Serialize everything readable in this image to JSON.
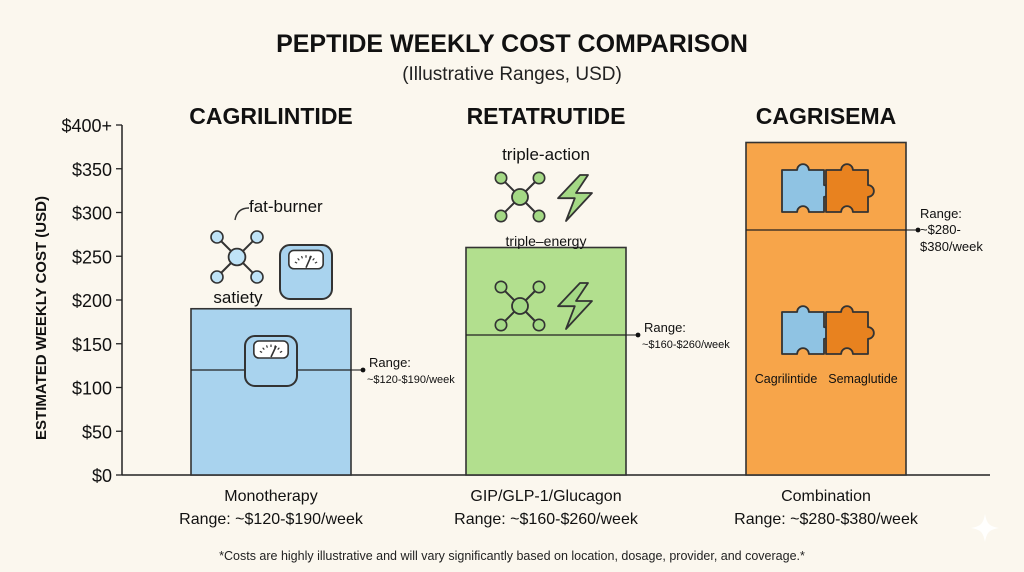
{
  "chart_data": {
    "type": "bar",
    "title": "PEPTIDE WEEKLY COST COMPARISON",
    "subtitle": "(Illustrative Ranges, USD)",
    "ylabel": "ESTIMATED WEEKLY COST (USD)",
    "ylim": [
      0,
      400
    ],
    "yticks": [
      {
        "value": 0,
        "label": "$0"
      },
      {
        "value": 50,
        "label": "$50"
      },
      {
        "value": 100,
        "label": "$100"
      },
      {
        "value": 150,
        "label": "$150"
      },
      {
        "value": 200,
        "label": "$200"
      },
      {
        "value": 250,
        "label": "$250"
      },
      {
        "value": 300,
        "label": "$300"
      },
      {
        "value": 350,
        "label": "$350"
      },
      {
        "value": 400,
        "label": "$400+"
      }
    ],
    "grid": false,
    "bars": [
      {
        "name": "CAGRILINTIDE",
        "low": 120,
        "high": 190,
        "color": "#a9d3ee",
        "range_label_top": "Range:",
        "range_label_bottom": "~$120-$190/week",
        "caption_line1": "Monotherapy",
        "caption_line2": "Range: ~$120-$190/week",
        "icon_labels": [
          "fat-burner",
          "satiety"
        ]
      },
      {
        "name": "RETATRUTIDE",
        "low": 160,
        "high": 260,
        "color": "#b2df8e",
        "range_label_top": "Range:",
        "range_label_bottom": "~$160-$260/week",
        "caption_line1": "GIP/GLP-1/Glucagon",
        "caption_line2": "Range: ~$160-$260/week",
        "icon_labels": [
          "triple-action",
          "triple–energy"
        ]
      },
      {
        "name": "CAGRISEMA",
        "low": 280,
        "high": 380,
        "color": "#f7a54a",
        "range_label_top": "Range:",
        "range_label_bottom": "~$280-\n$380/week",
        "caption_line1": "Combination",
        "caption_line2": "Range: ~$280-$380/week",
        "icon_labels": [
          "Cagrilintide",
          "Semaglutide"
        ]
      }
    ]
  },
  "footnote": "*Costs are highly illustrative and will vary significantly based on location, dosage, provider, and coverage.*",
  "icons": {
    "molecule": "molecule-icon",
    "lightning": "lightning-icon",
    "scale": "scale-icon",
    "puzzle": "puzzle-icon",
    "sparkle": "sparkle-icon"
  },
  "colors": {
    "background": "#fbf7ee",
    "puzzle_blue": "#8fc3e3",
    "puzzle_orange": "#e8821f",
    "molecule_fill": "#bfe3f7",
    "retatrutide_icon_fill": "#a4d985"
  }
}
